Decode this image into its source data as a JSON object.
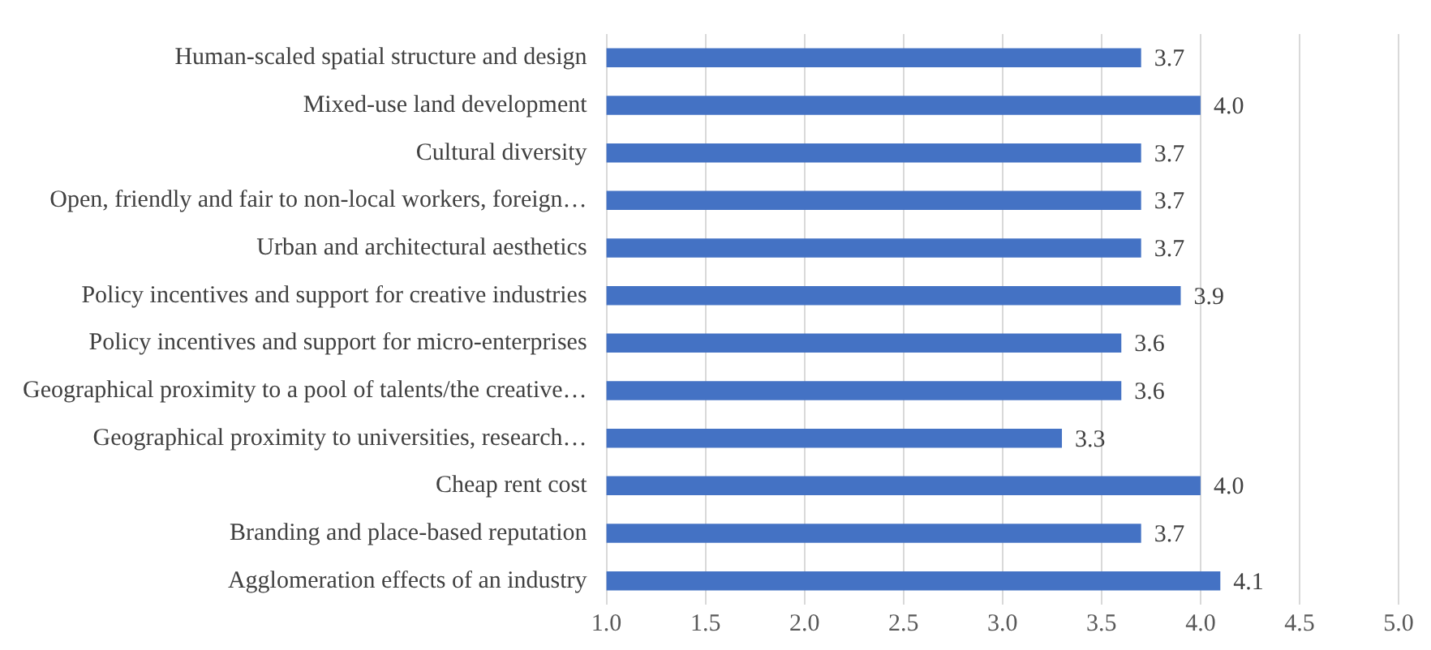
{
  "chart_data": {
    "type": "bar",
    "orientation": "horizontal",
    "categories": [
      "Human-scaled spatial structure and design",
      "Mixed-use land development",
      "Cultural diversity",
      "Open, friendly and fair to non-local workers, foreign…",
      "Urban and architectural aesthetics",
      "Policy incentives and support for creative industries",
      "Policy incentives and support for micro-enterprises",
      "Geographical proximity to a pool of talents/the creative…",
      "Geographical proximity to universities, research…",
      "Cheap rent cost",
      "Branding and place-based reputation",
      "Agglomeration effects of an industry"
    ],
    "values": [
      3.7,
      4.0,
      3.7,
      3.7,
      3.7,
      3.9,
      3.6,
      3.6,
      3.3,
      4.0,
      3.7,
      4.1
    ],
    "value_labels": [
      "3.7",
      "4.0",
      "3.7",
      "3.7",
      "3.7",
      "3.9",
      "3.6",
      "3.6",
      "3.3",
      "4.0",
      "3.7",
      "4.1"
    ],
    "color": "#4472c4",
    "xlim": [
      1,
      5
    ],
    "xticks": [
      {
        "value": 1,
        "label": "1.0"
      },
      {
        "value": 1.5,
        "label": "1.5"
      },
      {
        "value": 2,
        "label": "2.0"
      },
      {
        "value": 2.5,
        "label": "2.5"
      },
      {
        "value": 3,
        "label": "3.0"
      },
      {
        "value": 3.5,
        "label": "3.5"
      },
      {
        "value": 4,
        "label": "4.0"
      },
      {
        "value": 4.5,
        "label": "4.5"
      },
      {
        "value": 5,
        "label": "5.0"
      }
    ],
    "grid": "x"
  }
}
